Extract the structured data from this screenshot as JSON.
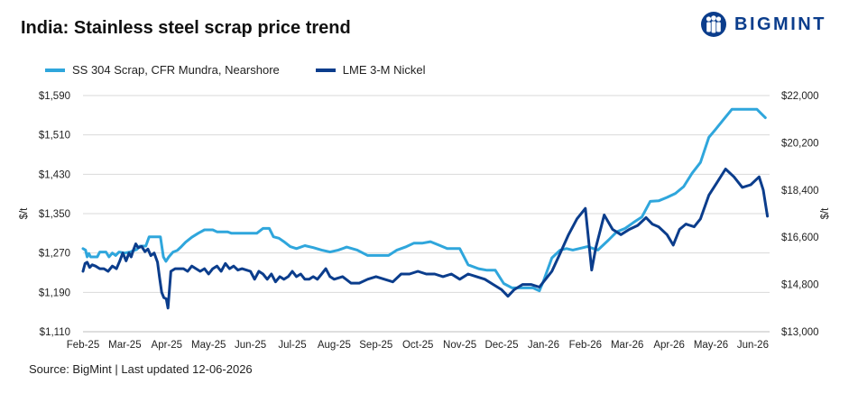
{
  "title": "India: Stainless steel scrap price trend",
  "brand": {
    "name": "BIGMINT",
    "logo_icon": "bigmint-people-logo-icon",
    "color": "#0b3d8c"
  },
  "source": "Source: BigMint | Last updated 12-06-2026",
  "chart_data": {
    "type": "line",
    "x_tick_labels": [
      "Feb-25",
      "Mar-25",
      "Apr-25",
      "May-25",
      "Jun-25",
      "Jul-25",
      "Aug-25",
      "Sep-25",
      "Oct-25",
      "Nov-25",
      "Dec-25",
      "Jan-26",
      "Feb-26",
      "Mar-26",
      "Apr-26",
      "May-26",
      "Jun-26"
    ],
    "x_range": [
      0,
      16.35
    ],
    "y_left": {
      "label": "$/t",
      "ticks": [
        "$1,590",
        "$1,510",
        "$1,430",
        "$1,350",
        "$1,270",
        "$1,190",
        "$1,110"
      ],
      "range": [
        1110,
        1590
      ]
    },
    "y_right": {
      "label": "$/t",
      "ticks": [
        "$22,000",
        "$20,200",
        "$18,400",
        "$16,600",
        "$14,800",
        "$13,000"
      ],
      "range": [
        13000,
        22000
      ]
    },
    "grid": true,
    "legend_position": "top-left",
    "series": [
      {
        "name": "SS 304 Scrap, CFR Mundra, Nearshore",
        "axis": "left",
        "color": "#2fa6dc",
        "points": [
          [
            0.0,
            1279
          ],
          [
            0.06,
            1276
          ],
          [
            0.1,
            1262
          ],
          [
            0.14,
            1269
          ],
          [
            0.18,
            1262
          ],
          [
            0.26,
            1262
          ],
          [
            0.34,
            1262
          ],
          [
            0.4,
            1272
          ],
          [
            0.55,
            1272
          ],
          [
            0.62,
            1262
          ],
          [
            0.7,
            1270
          ],
          [
            0.78,
            1265
          ],
          [
            0.86,
            1272
          ],
          [
            1.0,
            1270
          ],
          [
            1.12,
            1272
          ],
          [
            1.28,
            1277
          ],
          [
            1.36,
            1284
          ],
          [
            1.5,
            1284
          ],
          [
            1.58,
            1303
          ],
          [
            1.85,
            1303
          ],
          [
            1.92,
            1262
          ],
          [
            1.98,
            1253
          ],
          [
            2.05,
            1262
          ],
          [
            2.15,
            1272
          ],
          [
            2.25,
            1275
          ],
          [
            2.35,
            1283
          ],
          [
            2.45,
            1292
          ],
          [
            2.6,
            1302
          ],
          [
            2.75,
            1310
          ],
          [
            2.9,
            1317
          ],
          [
            3.1,
            1317
          ],
          [
            3.2,
            1313
          ],
          [
            3.45,
            1313
          ],
          [
            3.55,
            1310
          ],
          [
            4.15,
            1310
          ],
          [
            4.3,
            1320
          ],
          [
            4.45,
            1320
          ],
          [
            4.55,
            1303
          ],
          [
            4.68,
            1300
          ],
          [
            4.8,
            1293
          ],
          [
            4.95,
            1283
          ],
          [
            5.1,
            1279
          ],
          [
            5.3,
            1285
          ],
          [
            5.5,
            1281
          ],
          [
            5.7,
            1276
          ],
          [
            5.9,
            1272
          ],
          [
            6.1,
            1276
          ],
          [
            6.3,
            1282
          ],
          [
            6.55,
            1276
          ],
          [
            6.8,
            1265
          ],
          [
            7.3,
            1265
          ],
          [
            7.5,
            1276
          ],
          [
            7.7,
            1282
          ],
          [
            7.9,
            1290
          ],
          [
            8.1,
            1290
          ],
          [
            8.3,
            1293
          ],
          [
            8.5,
            1286
          ],
          [
            8.7,
            1279
          ],
          [
            9.0,
            1279
          ],
          [
            9.2,
            1246
          ],
          [
            9.45,
            1238
          ],
          [
            9.65,
            1235
          ],
          [
            9.85,
            1235
          ],
          [
            10.05,
            1208
          ],
          [
            10.25,
            1199
          ],
          [
            10.5,
            1199
          ],
          [
            10.75,
            1199
          ],
          [
            10.9,
            1193
          ],
          [
            11.0,
            1213
          ],
          [
            11.2,
            1260
          ],
          [
            11.4,
            1276
          ],
          [
            11.55,
            1279
          ],
          [
            11.7,
            1276
          ],
          [
            11.85,
            1279
          ],
          [
            12.05,
            1283
          ],
          [
            12.3,
            1276
          ],
          [
            12.55,
            1296
          ],
          [
            12.75,
            1313
          ],
          [
            12.95,
            1320
          ],
          [
            13.15,
            1332
          ],
          [
            13.35,
            1343
          ],
          [
            13.55,
            1375
          ],
          [
            13.75,
            1376
          ],
          [
            13.95,
            1383
          ],
          [
            14.15,
            1391
          ],
          [
            14.35,
            1405
          ],
          [
            14.55,
            1432
          ],
          [
            14.75,
            1454
          ],
          [
            14.95,
            1505
          ],
          [
            15.1,
            1520
          ],
          [
            15.3,
            1541
          ],
          [
            15.5,
            1562
          ],
          [
            15.7,
            1562
          ],
          [
            15.9,
            1562
          ],
          [
            16.1,
            1562
          ],
          [
            16.3,
            1545
          ]
        ]
      },
      {
        "name": "LME 3-M Nickel",
        "axis": "right",
        "color": "#0b3d8c",
        "points": [
          [
            0.0,
            15300
          ],
          [
            0.05,
            15600
          ],
          [
            0.1,
            15650
          ],
          [
            0.16,
            15450
          ],
          [
            0.22,
            15550
          ],
          [
            0.3,
            15500
          ],
          [
            0.4,
            15400
          ],
          [
            0.5,
            15400
          ],
          [
            0.6,
            15300
          ],
          [
            0.7,
            15500
          ],
          [
            0.8,
            15400
          ],
          [
            0.88,
            15700
          ],
          [
            0.95,
            16000
          ],
          [
            1.03,
            15700
          ],
          [
            1.1,
            16000
          ],
          [
            1.15,
            15850
          ],
          [
            1.2,
            16100
          ],
          [
            1.26,
            16350
          ],
          [
            1.32,
            16200
          ],
          [
            1.4,
            16250
          ],
          [
            1.48,
            16050
          ],
          [
            1.55,
            16150
          ],
          [
            1.62,
            15900
          ],
          [
            1.7,
            16000
          ],
          [
            1.78,
            15650
          ],
          [
            1.83,
            15050
          ],
          [
            1.88,
            14500
          ],
          [
            1.93,
            14300
          ],
          [
            1.99,
            14250
          ],
          [
            2.03,
            13900
          ],
          [
            2.1,
            15300
          ],
          [
            2.2,
            15400
          ],
          [
            2.3,
            15400
          ],
          [
            2.4,
            15400
          ],
          [
            2.5,
            15300
          ],
          [
            2.6,
            15500
          ],
          [
            2.7,
            15400
          ],
          [
            2.8,
            15300
          ],
          [
            2.9,
            15400
          ],
          [
            3.0,
            15200
          ],
          [
            3.1,
            15400
          ],
          [
            3.2,
            15500
          ],
          [
            3.3,
            15300
          ],
          [
            3.4,
            15600
          ],
          [
            3.5,
            15400
          ],
          [
            3.6,
            15500
          ],
          [
            3.7,
            15350
          ],
          [
            3.8,
            15400
          ],
          [
            3.9,
            15350
          ],
          [
            4.0,
            15300
          ],
          [
            4.1,
            15000
          ],
          [
            4.2,
            15300
          ],
          [
            4.3,
            15200
          ],
          [
            4.4,
            15000
          ],
          [
            4.5,
            15200
          ],
          [
            4.6,
            14900
          ],
          [
            4.7,
            15100
          ],
          [
            4.8,
            15000
          ],
          [
            4.9,
            15100
          ],
          [
            5.0,
            15300
          ],
          [
            5.1,
            15100
          ],
          [
            5.2,
            15200
          ],
          [
            5.3,
            15000
          ],
          [
            5.4,
            15000
          ],
          [
            5.5,
            15100
          ],
          [
            5.6,
            15000
          ],
          [
            5.7,
            15200
          ],
          [
            5.8,
            15400
          ],
          [
            5.9,
            15100
          ],
          [
            6.0,
            15000
          ],
          [
            6.2,
            15100
          ],
          [
            6.4,
            14850
          ],
          [
            6.6,
            14850
          ],
          [
            6.8,
            15000
          ],
          [
            7.0,
            15100
          ],
          [
            7.2,
            15000
          ],
          [
            7.4,
            14900
          ],
          [
            7.6,
            15200
          ],
          [
            7.8,
            15200
          ],
          [
            8.0,
            15300
          ],
          [
            8.2,
            15200
          ],
          [
            8.4,
            15200
          ],
          [
            8.6,
            15100
          ],
          [
            8.8,
            15200
          ],
          [
            9.0,
            15000
          ],
          [
            9.2,
            15200
          ],
          [
            9.4,
            15100
          ],
          [
            9.6,
            15000
          ],
          [
            9.8,
            14800
          ],
          [
            10.0,
            14600
          ],
          [
            10.15,
            14350
          ],
          [
            10.3,
            14600
          ],
          [
            10.5,
            14800
          ],
          [
            10.7,
            14800
          ],
          [
            10.9,
            14700
          ],
          [
            11.05,
            15000
          ],
          [
            11.2,
            15300
          ],
          [
            11.4,
            16000
          ],
          [
            11.6,
            16700
          ],
          [
            11.8,
            17300
          ],
          [
            12.0,
            17700
          ],
          [
            12.15,
            15350
          ],
          [
            12.25,
            16200
          ],
          [
            12.45,
            17450
          ],
          [
            12.65,
            16900
          ],
          [
            12.85,
            16700
          ],
          [
            13.05,
            16900
          ],
          [
            13.25,
            17050
          ],
          [
            13.45,
            17350
          ],
          [
            13.6,
            17100
          ],
          [
            13.75,
            17000
          ],
          [
            13.95,
            16700
          ],
          [
            14.1,
            16300
          ],
          [
            14.25,
            16900
          ],
          [
            14.4,
            17100
          ],
          [
            14.6,
            17000
          ],
          [
            14.75,
            17300
          ],
          [
            14.95,
            18200
          ],
          [
            15.15,
            18700
          ],
          [
            15.35,
            19200
          ],
          [
            15.55,
            18900
          ],
          [
            15.75,
            18500
          ],
          [
            15.95,
            18600
          ],
          [
            16.15,
            18900
          ],
          [
            16.25,
            18400
          ],
          [
            16.35,
            17400
          ]
        ]
      }
    ]
  }
}
